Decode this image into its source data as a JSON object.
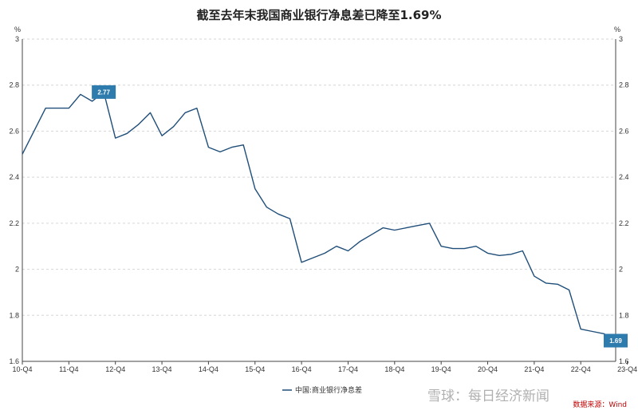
{
  "chart_data": {
    "type": "line",
    "title": "截至去年末我国商业银行净息差已降至1.69%",
    "ylabel_left": "%",
    "ylabel_right": "%",
    "ylim": [
      1.6,
      3.0
    ],
    "yticks": [
      1.6,
      1.8,
      2,
      2.2,
      2.4,
      2.6,
      2.8,
      3
    ],
    "xticks": [
      "10-Q4",
      "11-Q4",
      "12-Q4",
      "13-Q4",
      "14-Q4",
      "15-Q4",
      "16-Q4",
      "17-Q4",
      "18-Q4",
      "19-Q4",
      "20-Q4",
      "21-Q4",
      "22-Q4",
      "23-Q4"
    ],
    "grid": "horizontal-dashed",
    "legend_position": "bottom",
    "series": [
      {
        "name": "中国:商业银行净息差",
        "color": "#1f4e79",
        "values": [
          2.5,
          2.6,
          2.7,
          2.7,
          2.7,
          2.76,
          2.73,
          2.77,
          2.57,
          2.59,
          2.63,
          2.68,
          2.58,
          2.62,
          2.68,
          2.7,
          2.53,
          2.51,
          2.53,
          2.54,
          2.35,
          2.27,
          2.24,
          2.22,
          2.03,
          2.05,
          2.07,
          2.1,
          2.08,
          2.12,
          2.15,
          2.18,
          2.17,
          2.18,
          2.19,
          2.2,
          2.1,
          2.09,
          2.09,
          2.1,
          2.07,
          2.06,
          2.065,
          2.08,
          1.97,
          1.94,
          1.935,
          1.91,
          1.74,
          1.73,
          1.72,
          1.69
        ]
      }
    ],
    "callouts": [
      {
        "index": 7,
        "label": "2.77",
        "color": "#2e7bad"
      },
      {
        "index": 51,
        "label": "1.69",
        "color": "#2e7bad"
      }
    ],
    "source": "数据来源：Wind",
    "watermark": "雪球：每日经济新闻"
  }
}
